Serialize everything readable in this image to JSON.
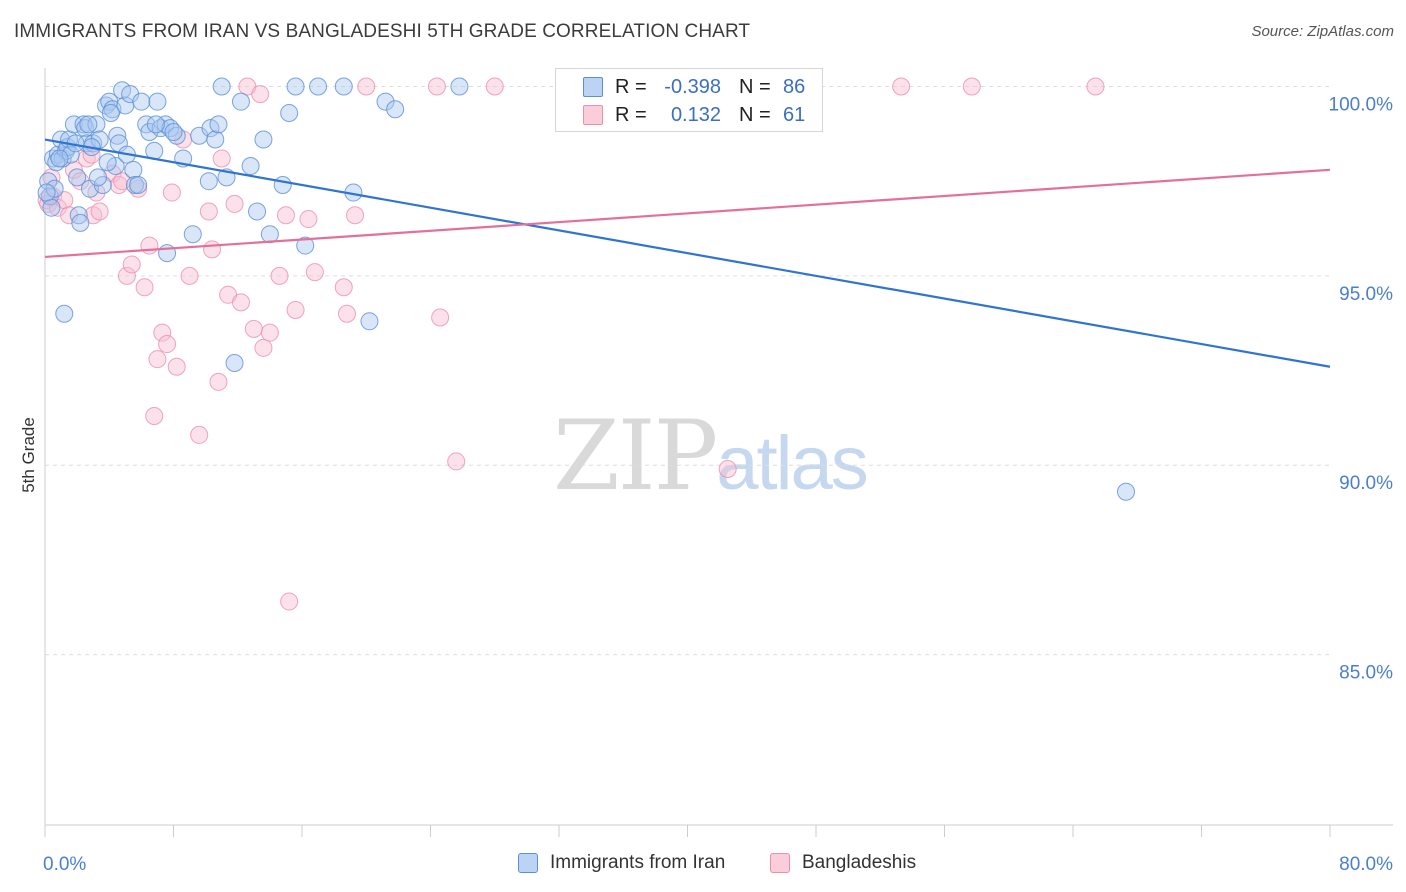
{
  "title": "IMMIGRANTS FROM IRAN VS BANGLADESHI 5TH GRADE CORRELATION CHART",
  "source": "Source: ZipAtlas.com",
  "legend": {
    "rows": [
      {
        "r_label": "R =",
        "r_value": "-0.398",
        "n_label": "N =",
        "n_value": "86"
      },
      {
        "r_label": "R =",
        "r_value": "0.132",
        "n_label": "N =",
        "n_value": "61"
      }
    ]
  },
  "bottom_legend": [
    "Immigrants from Iran",
    "Bangladeshis"
  ],
  "watermark": {
    "zip": "ZIP",
    "atlas": "atlas"
  },
  "colors": {
    "iran_fill": "#a9c7f0",
    "iran_stroke": "#5b8fd8",
    "iran_line": "#2f74d0",
    "bang_fill": "#f7bfd0",
    "bang_stroke": "#ec8fae",
    "bang_line": "#e4709a",
    "grid": "#dddddd",
    "tick_text": "#4a7fd0"
  },
  "chart_data": {
    "type": "scatter",
    "title": "IMMIGRANTS FROM IRAN VS BANGLADESHI 5TH GRADE CORRELATION CHART",
    "xlabel": "",
    "ylabel": "5th Grade",
    "xlim": [
      0,
      80
    ],
    "ylim": [
      80.5,
      100.7
    ],
    "x_tick_labels": [
      "0.0%",
      "80.0%"
    ],
    "y_ticks": [
      85,
      90,
      95,
      100
    ],
    "y_tick_labels": [
      "85.0%",
      "90.0%",
      "95.0%",
      "100.0%"
    ],
    "series": [
      {
        "name": "Immigrants from Iran",
        "r": -0.398,
        "n": 86,
        "trend": {
          "x": [
            0,
            80
          ],
          "y": [
            98.6,
            92.6
          ]
        },
        "points": [
          [
            0.2,
            97.5
          ],
          [
            0.3,
            97.1
          ],
          [
            0.4,
            96.8
          ],
          [
            0.5,
            98.1
          ],
          [
            0.6,
            97.3
          ],
          [
            0.8,
            98.2
          ],
          [
            1.0,
            98.6
          ],
          [
            1.1,
            98.1
          ],
          [
            1.3,
            98.3
          ],
          [
            1.4,
            98.4
          ],
          [
            1.5,
            98.6
          ],
          [
            1.6,
            98.2
          ],
          [
            1.8,
            99.0
          ],
          [
            2.0,
            97.6
          ],
          [
            2.1,
            96.6
          ],
          [
            2.2,
            96.4
          ],
          [
            2.4,
            99.0
          ],
          [
            2.5,
            98.9
          ],
          [
            2.6,
            98.5
          ],
          [
            2.8,
            97.3
          ],
          [
            3.0,
            98.5
          ],
          [
            3.2,
            99.0
          ],
          [
            3.4,
            98.6
          ],
          [
            3.6,
            97.4
          ],
          [
            3.8,
            99.5
          ],
          [
            4.0,
            99.6
          ],
          [
            4.2,
            99.4
          ],
          [
            4.4,
            97.9
          ],
          [
            4.5,
            98.7
          ],
          [
            4.6,
            98.5
          ],
          [
            4.8,
            99.9
          ],
          [
            5.0,
            99.5
          ],
          [
            5.1,
            98.2
          ],
          [
            5.3,
            99.8
          ],
          [
            5.5,
            97.8
          ],
          [
            5.6,
            97.4
          ],
          [
            6.0,
            99.6
          ],
          [
            6.3,
            99.0
          ],
          [
            6.5,
            98.8
          ],
          [
            6.8,
            98.3
          ],
          [
            7.0,
            99.6
          ],
          [
            7.2,
            98.9
          ],
          [
            7.5,
            99.0
          ],
          [
            7.6,
            95.6
          ],
          [
            7.8,
            98.9
          ],
          [
            8.2,
            98.7
          ],
          [
            8.6,
            98.1
          ],
          [
            9.2,
            96.1
          ],
          [
            9.6,
            98.7
          ],
          [
            10.2,
            97.5
          ],
          [
            10.3,
            98.9
          ],
          [
            10.6,
            98.6
          ],
          [
            11.0,
            100.0
          ],
          [
            11.3,
            97.6
          ],
          [
            11.8,
            92.7
          ],
          [
            12.2,
            99.6
          ],
          [
            12.8,
            97.9
          ],
          [
            13.2,
            96.7
          ],
          [
            13.6,
            98.6
          ],
          [
            14.0,
            96.1
          ],
          [
            14.8,
            97.4
          ],
          [
            15.2,
            99.3
          ],
          [
            15.6,
            100.0
          ],
          [
            16.2,
            95.8
          ],
          [
            17.0,
            100.0
          ],
          [
            18.6,
            100.0
          ],
          [
            19.2,
            97.2
          ],
          [
            20.2,
            93.8
          ],
          [
            21.2,
            99.6
          ],
          [
            21.8,
            99.4
          ],
          [
            25.8,
            100.0
          ],
          [
            67.3,
            89.3
          ],
          [
            1.2,
            94.0
          ],
          [
            0.7,
            98.0
          ],
          [
            2.9,
            98.4
          ],
          [
            3.3,
            97.6
          ],
          [
            5.8,
            97.4
          ],
          [
            4.1,
            99.3
          ],
          [
            6.9,
            99.0
          ],
          [
            1.9,
            98.5
          ],
          [
            0.9,
            98.1
          ],
          [
            2.7,
            99.0
          ],
          [
            3.9,
            98.0
          ],
          [
            8.0,
            98.8
          ],
          [
            10.8,
            99.0
          ],
          [
            0.1,
            97.2
          ]
        ]
      },
      {
        "name": "Bangladeshis",
        "r": 0.132,
        "n": 61,
        "trend": {
          "x": [
            0,
            80
          ],
          "y": [
            95.5,
            97.8
          ]
        },
        "points": [
          [
            0.1,
            97.0
          ],
          [
            0.2,
            96.9
          ],
          [
            0.4,
            97.6
          ],
          [
            0.5,
            97.1
          ],
          [
            0.8,
            96.8
          ],
          [
            1.2,
            97.0
          ],
          [
            1.5,
            96.6
          ],
          [
            1.8,
            97.8
          ],
          [
            2.2,
            97.5
          ],
          [
            2.6,
            98.1
          ],
          [
            2.9,
            98.2
          ],
          [
            3.0,
            96.6
          ],
          [
            3.2,
            97.2
          ],
          [
            3.4,
            96.7
          ],
          [
            4.2,
            97.7
          ],
          [
            4.6,
            97.4
          ],
          [
            4.8,
            97.5
          ],
          [
            5.1,
            95.0
          ],
          [
            5.4,
            95.3
          ],
          [
            5.8,
            97.3
          ],
          [
            6.2,
            94.7
          ],
          [
            6.5,
            95.8
          ],
          [
            6.8,
            91.3
          ],
          [
            7.0,
            92.8
          ],
          [
            7.3,
            93.5
          ],
          [
            7.6,
            93.2
          ],
          [
            7.9,
            97.2
          ],
          [
            8.2,
            92.6
          ],
          [
            8.6,
            98.6
          ],
          [
            9.0,
            95.0
          ],
          [
            9.6,
            90.8
          ],
          [
            10.2,
            96.7
          ],
          [
            10.4,
            95.7
          ],
          [
            10.8,
            92.2
          ],
          [
            11.0,
            98.1
          ],
          [
            11.4,
            94.5
          ],
          [
            11.8,
            96.9
          ],
          [
            12.2,
            94.3
          ],
          [
            12.6,
            100.0
          ],
          [
            13.0,
            93.6
          ],
          [
            13.4,
            99.8
          ],
          [
            13.6,
            93.1
          ],
          [
            14.0,
            93.5
          ],
          [
            14.6,
            95.0
          ],
          [
            15.0,
            96.6
          ],
          [
            15.2,
            86.4
          ],
          [
            15.6,
            94.1
          ],
          [
            16.4,
            96.5
          ],
          [
            16.8,
            95.1
          ],
          [
            18.6,
            94.7
          ],
          [
            18.8,
            94.0
          ],
          [
            19.3,
            96.6
          ],
          [
            20.0,
            100.0
          ],
          [
            24.4,
            100.0
          ],
          [
            24.6,
            93.9
          ],
          [
            25.6,
            90.1
          ],
          [
            28.0,
            100.0
          ],
          [
            42.5,
            89.9
          ],
          [
            53.3,
            100.0
          ],
          [
            57.7,
            100.0
          ],
          [
            65.4,
            100.0
          ]
        ]
      }
    ]
  }
}
